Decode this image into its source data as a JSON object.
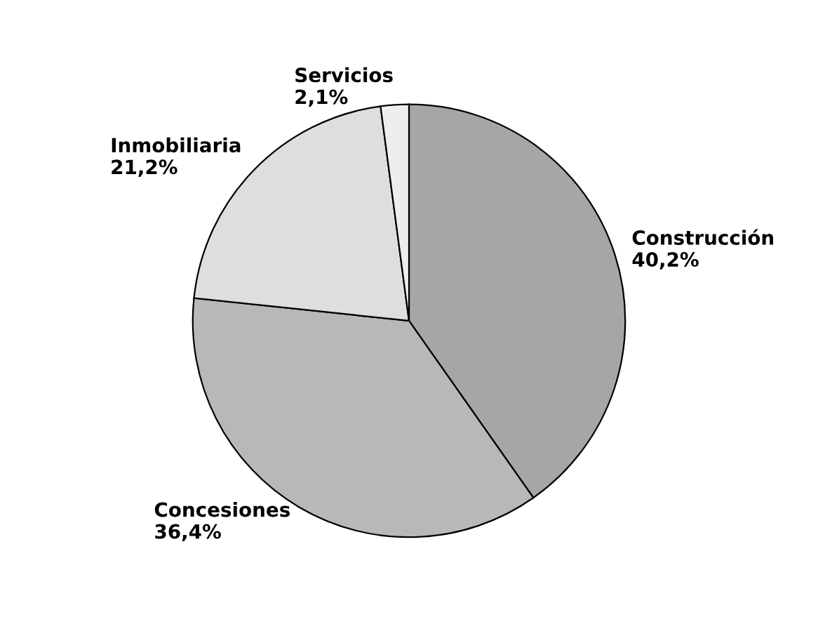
{
  "chart_data": {
    "type": "pie",
    "categories": [
      "Construcción",
      "Concesiones",
      "Inmobiliaria",
      "Servicios"
    ],
    "values": [
      40.2,
      36.4,
      21.2,
      2.1
    ],
    "value_labels": [
      "40,2%",
      "36,4%",
      "21,2%",
      "2,1%"
    ],
    "colors": [
      "#a6a6a6",
      "#b8b8b8",
      "#dedede",
      "#eeeeee"
    ],
    "legend": false
  }
}
